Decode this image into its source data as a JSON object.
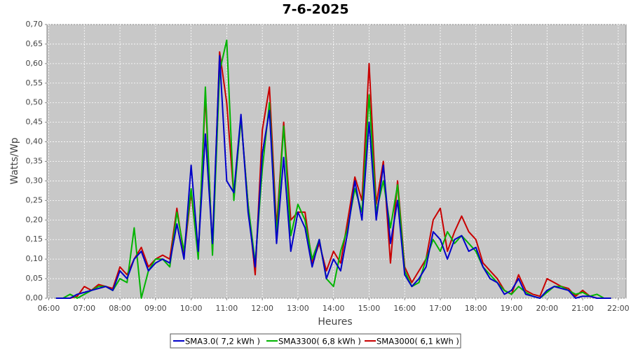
{
  "chart_data": {
    "type": "line",
    "title": "7-6-2025",
    "x_label": "Heures",
    "y_label": "Watts/Wp",
    "x": [
      6.2,
      6.4,
      6.6,
      6.8,
      7.0,
      7.2,
      7.4,
      7.6,
      7.8,
      8.0,
      8.2,
      8.4,
      8.6,
      8.8,
      9.0,
      9.2,
      9.4,
      9.6,
      9.8,
      10.0,
      10.2,
      10.4,
      10.6,
      10.8,
      11.0,
      11.2,
      11.4,
      11.6,
      11.8,
      12.0,
      12.2,
      12.4,
      12.6,
      12.8,
      13.0,
      13.2,
      13.4,
      13.6,
      13.8,
      14.0,
      14.2,
      14.4,
      14.6,
      14.8,
      15.0,
      15.2,
      15.4,
      15.6,
      15.8,
      16.0,
      16.2,
      16.4,
      16.6,
      16.8,
      17.0,
      17.2,
      17.4,
      17.6,
      17.8,
      18.0,
      18.2,
      18.4,
      18.6,
      18.8,
      19.0,
      19.2,
      19.4,
      19.6,
      19.8,
      20.0,
      20.2,
      20.4,
      20.6,
      20.8,
      21.0,
      21.2,
      21.4,
      21.6,
      21.8
    ],
    "series": [
      {
        "name": "SMA3.0( 7,2 kWh )",
        "color": "#0000c8",
        "values": [
          0,
          0,
          0,
          0.01,
          0.015,
          0.02,
          0.025,
          0.03,
          0.02,
          0.07,
          0.05,
          0.1,
          0.12,
          0.07,
          0.09,
          0.1,
          0.09,
          0.19,
          0.1,
          0.34,
          0.12,
          0.42,
          0.14,
          0.62,
          0.3,
          0.27,
          0.47,
          0.22,
          0.08,
          0.37,
          0.48,
          0.14,
          0.36,
          0.12,
          0.22,
          0.18,
          0.08,
          0.15,
          0.05,
          0.1,
          0.07,
          0.17,
          0.3,
          0.2,
          0.45,
          0.2,
          0.34,
          0.14,
          0.25,
          0.06,
          0.03,
          0.05,
          0.08,
          0.17,
          0.15,
          0.1,
          0.15,
          0.16,
          0.12,
          0.13,
          0.08,
          0.05,
          0.04,
          0.01,
          0.02,
          0.05,
          0.01,
          0.005,
          0,
          0.02,
          0.03,
          0.025,
          0.02,
          0,
          0.005,
          0.005,
          0,
          0,
          0
        ]
      },
      {
        "name": "SMA3300( 6,8 kWh )",
        "color": "#00b400",
        "values": [
          0,
          0,
          0.01,
          0,
          0.01,
          0.02,
          0.03,
          0.03,
          0.02,
          0.05,
          0.04,
          0.18,
          0.0,
          0.07,
          0.1,
          0.1,
          0.08,
          0.22,
          0.12,
          0.28,
          0.1,
          0.54,
          0.11,
          0.58,
          0.66,
          0.25,
          0.46,
          0.24,
          0.09,
          0.33,
          0.5,
          0.16,
          0.44,
          0.16,
          0.24,
          0.2,
          0.1,
          0.15,
          0.05,
          0.03,
          0.12,
          0.18,
          0.28,
          0.22,
          0.52,
          0.22,
          0.3,
          0.18,
          0.29,
          0.07,
          0.03,
          0.04,
          0.1,
          0.15,
          0.12,
          0.17,
          0.14,
          0.16,
          0.14,
          0.12,
          0.08,
          0.06,
          0.04,
          0.02,
          0.01,
          0.03,
          0.015,
          0.005,
          0,
          0.015,
          0.03,
          0.03,
          0.02,
          0.01,
          0.015,
          0.005,
          0.01,
          0,
          0
        ]
      },
      {
        "name": "SMA3000( 6,1 kWh )",
        "color": "#c80000",
        "values": [
          0,
          0,
          0,
          0.005,
          0.03,
          0.02,
          0.035,
          0.03,
          0.025,
          0.08,
          0.06,
          0.1,
          0.13,
          0.08,
          0.1,
          0.11,
          0.1,
          0.23,
          0.11,
          0.27,
          0.11,
          0.52,
          0.12,
          0.63,
          0.5,
          0.26,
          0.46,
          0.24,
          0.06,
          0.43,
          0.54,
          0.18,
          0.45,
          0.2,
          0.22,
          0.22,
          0.09,
          0.14,
          0.07,
          0.12,
          0.09,
          0.2,
          0.31,
          0.25,
          0.6,
          0.24,
          0.35,
          0.09,
          0.3,
          0.08,
          0.04,
          0.07,
          0.1,
          0.2,
          0.23,
          0.12,
          0.17,
          0.21,
          0.17,
          0.15,
          0.09,
          0.07,
          0.05,
          0.02,
          0.01,
          0.06,
          0.02,
          0.01,
          0.005,
          0.05,
          0.04,
          0.03,
          0.025,
          0.005,
          0.02,
          0.005,
          0,
          0,
          0
        ]
      }
    ],
    "xlim": [
      5.95,
      22.22
    ],
    "xticks": [
      {
        "value": 6,
        "label": "06:00"
      },
      {
        "value": 7,
        "label": "07:00"
      },
      {
        "value": 8,
        "label": "08:00"
      },
      {
        "value": 9,
        "label": "09:00"
      },
      {
        "value": 10,
        "label": "10:00"
      },
      {
        "value": 11,
        "label": "11:00"
      },
      {
        "value": 12,
        "label": "12:00"
      },
      {
        "value": 13,
        "label": "13:00"
      },
      {
        "value": 14,
        "label": "14:00"
      },
      {
        "value": 15,
        "label": "15:00"
      },
      {
        "value": 16,
        "label": "16:00"
      },
      {
        "value": 17,
        "label": "17:00"
      },
      {
        "value": 18,
        "label": "18:00"
      },
      {
        "value": 19,
        "label": "19:00"
      },
      {
        "value": 20,
        "label": "20:00"
      },
      {
        "value": 21,
        "label": "21:00"
      },
      {
        "value": 22,
        "label": "22:00"
      }
    ],
    "ylim": [
      0,
      0.7
    ],
    "yticks": [
      {
        "value": 0,
        "label": "0,00"
      },
      {
        "value": 0.05,
        "label": "0,05"
      },
      {
        "value": 0.1,
        "label": "0,10"
      },
      {
        "value": 0.15,
        "label": "0,15"
      },
      {
        "value": 0.2,
        "label": "0,20"
      },
      {
        "value": 0.25,
        "label": "0,25"
      },
      {
        "value": 0.3,
        "label": "0,30"
      },
      {
        "value": 0.35,
        "label": "0,35"
      },
      {
        "value": 0.4,
        "label": "0,40"
      },
      {
        "value": 0.45,
        "label": "0,45"
      },
      {
        "value": 0.5,
        "label": "0,50"
      },
      {
        "value": 0.55,
        "label": "0,55"
      },
      {
        "value": 0.6,
        "label": "0,60"
      },
      {
        "value": 0.65,
        "label": "0,65"
      },
      {
        "value": 0.7,
        "label": "0,70"
      }
    ],
    "grid": true,
    "legend": "bottom"
  }
}
